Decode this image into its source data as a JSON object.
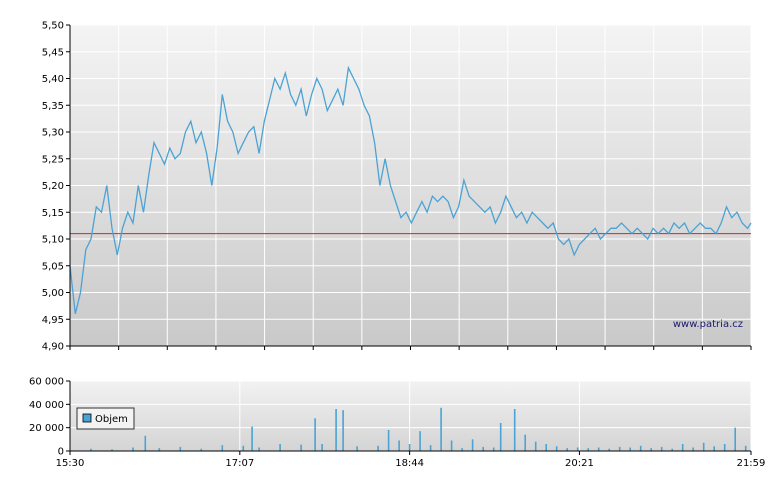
{
  "chart_data": [
    {
      "type": "line",
      "title": "",
      "xlabel": "",
      "ylabel": "",
      "y_ticks": [
        "4,90",
        "4,95",
        "5,00",
        "5,05",
        "5,10",
        "5,15",
        "5,20",
        "5,25",
        "5,30",
        "5,35",
        "5,40",
        "5,45",
        "5,50"
      ],
      "ylim": [
        4.9,
        5.5
      ],
      "x_ticks": [
        "15:30",
        "17:07",
        "18:44",
        "20:21",
        "21:59"
      ],
      "xlim": [
        "15:30",
        "21:59"
      ],
      "reference_line": {
        "value": 5.11,
        "color": "#dd2222"
      },
      "grid": true,
      "watermark": "www.patria.cz",
      "series": [
        {
          "color": "#4aa3d4",
          "points": [
            [
              "15:30",
              5.05
            ],
            [
              "15:33",
              4.96
            ],
            [
              "15:36",
              5.0
            ],
            [
              "15:39",
              5.08
            ],
            [
              "15:42",
              5.1
            ],
            [
              "15:45",
              5.16
            ],
            [
              "15:48",
              5.15
            ],
            [
              "15:51",
              5.2
            ],
            [
              "15:54",
              5.12
            ],
            [
              "15:57",
              5.07
            ],
            [
              "16:00",
              5.12
            ],
            [
              "16:03",
              5.15
            ],
            [
              "16:06",
              5.13
            ],
            [
              "16:09",
              5.2
            ],
            [
              "16:12",
              5.15
            ],
            [
              "16:15",
              5.22
            ],
            [
              "16:18",
              5.28
            ],
            [
              "16:21",
              5.26
            ],
            [
              "16:24",
              5.24
            ],
            [
              "16:27",
              5.27
            ],
            [
              "16:30",
              5.25
            ],
            [
              "16:33",
              5.26
            ],
            [
              "16:36",
              5.3
            ],
            [
              "16:39",
              5.32
            ],
            [
              "16:42",
              5.28
            ],
            [
              "16:45",
              5.3
            ],
            [
              "16:48",
              5.26
            ],
            [
              "16:51",
              5.2
            ],
            [
              "16:54",
              5.27
            ],
            [
              "16:57",
              5.37
            ],
            [
              "17:00",
              5.32
            ],
            [
              "17:03",
              5.3
            ],
            [
              "17:06",
              5.26
            ],
            [
              "17:09",
              5.28
            ],
            [
              "17:12",
              5.3
            ],
            [
              "17:15",
              5.31
            ],
            [
              "17:18",
              5.26
            ],
            [
              "17:21",
              5.32
            ],
            [
              "17:24",
              5.36
            ],
            [
              "17:27",
              5.4
            ],
            [
              "17:30",
              5.38
            ],
            [
              "17:33",
              5.41
            ],
            [
              "17:36",
              5.37
            ],
            [
              "17:39",
              5.35
            ],
            [
              "17:42",
              5.38
            ],
            [
              "17:45",
              5.33
            ],
            [
              "17:48",
              5.37
            ],
            [
              "17:51",
              5.4
            ],
            [
              "17:54",
              5.38
            ],
            [
              "17:57",
              5.34
            ],
            [
              "18:00",
              5.36
            ],
            [
              "18:03",
              5.38
            ],
            [
              "18:06",
              5.35
            ],
            [
              "18:09",
              5.42
            ],
            [
              "18:12",
              5.4
            ],
            [
              "18:15",
              5.38
            ],
            [
              "18:18",
              5.35
            ],
            [
              "18:21",
              5.33
            ],
            [
              "18:24",
              5.28
            ],
            [
              "18:27",
              5.2
            ],
            [
              "18:30",
              5.25
            ],
            [
              "18:33",
              5.2
            ],
            [
              "18:36",
              5.17
            ],
            [
              "18:39",
              5.14
            ],
            [
              "18:42",
              5.15
            ],
            [
              "18:45",
              5.13
            ],
            [
              "18:48",
              5.15
            ],
            [
              "18:51",
              5.17
            ],
            [
              "18:54",
              5.15
            ],
            [
              "18:57",
              5.18
            ],
            [
              "19:00",
              5.17
            ],
            [
              "19:03",
              5.18
            ],
            [
              "19:06",
              5.17
            ],
            [
              "19:09",
              5.14
            ],
            [
              "19:12",
              5.16
            ],
            [
              "19:15",
              5.21
            ],
            [
              "19:18",
              5.18
            ],
            [
              "19:21",
              5.17
            ],
            [
              "19:24",
              5.16
            ],
            [
              "19:27",
              5.15
            ],
            [
              "19:30",
              5.16
            ],
            [
              "19:33",
              5.13
            ],
            [
              "19:36",
              5.15
            ],
            [
              "19:39",
              5.18
            ],
            [
              "19:42",
              5.16
            ],
            [
              "19:45",
              5.14
            ],
            [
              "19:48",
              5.15
            ],
            [
              "19:51",
              5.13
            ],
            [
              "19:54",
              5.15
            ],
            [
              "19:57",
              5.14
            ],
            [
              "20:00",
              5.13
            ],
            [
              "20:03",
              5.12
            ],
            [
              "20:06",
              5.13
            ],
            [
              "20:09",
              5.1
            ],
            [
              "20:12",
              5.09
            ],
            [
              "20:15",
              5.1
            ],
            [
              "20:18",
              5.07
            ],
            [
              "20:21",
              5.09
            ],
            [
              "20:24",
              5.1
            ],
            [
              "20:27",
              5.11
            ],
            [
              "20:30",
              5.12
            ],
            [
              "20:33",
              5.1
            ],
            [
              "20:36",
              5.11
            ],
            [
              "20:39",
              5.12
            ],
            [
              "20:42",
              5.12
            ],
            [
              "20:45",
              5.13
            ],
            [
              "20:48",
              5.12
            ],
            [
              "20:51",
              5.11
            ],
            [
              "20:54",
              5.12
            ],
            [
              "20:57",
              5.11
            ],
            [
              "21:00",
              5.1
            ],
            [
              "21:03",
              5.12
            ],
            [
              "21:06",
              5.11
            ],
            [
              "21:09",
              5.12
            ],
            [
              "21:12",
              5.11
            ],
            [
              "21:15",
              5.13
            ],
            [
              "21:18",
              5.12
            ],
            [
              "21:21",
              5.13
            ],
            [
              "21:24",
              5.11
            ],
            [
              "21:27",
              5.12
            ],
            [
              "21:30",
              5.13
            ],
            [
              "21:33",
              5.12
            ],
            [
              "21:36",
              5.12
            ],
            [
              "21:39",
              5.11
            ],
            [
              "21:42",
              5.13
            ],
            [
              "21:45",
              5.16
            ],
            [
              "21:48",
              5.14
            ],
            [
              "21:51",
              5.15
            ],
            [
              "21:54",
              5.13
            ],
            [
              "21:57",
              5.12
            ],
            [
              "21:59",
              5.13
            ]
          ]
        }
      ]
    },
    {
      "type": "bar",
      "title": "",
      "xlabel": "",
      "ylabel": "",
      "y_ticks": [
        "0",
        "20 000",
        "40 000",
        "60 000"
      ],
      "ylim": [
        0,
        60000
      ],
      "x_ticks": [
        "15:30",
        "17:07",
        "18:44",
        "20:21",
        "21:59"
      ],
      "xlim": [
        "15:30",
        "21:59"
      ],
      "grid": true,
      "legend": {
        "placement": "top-left",
        "entries": [
          "Objem"
        ]
      },
      "series": [
        {
          "name": "Objem",
          "color": "#4aa3d4",
          "points": [
            [
              "15:42",
              2000
            ],
            [
              "15:54",
              1500
            ],
            [
              "16:06",
              3000
            ],
            [
              "16:13",
              13000
            ],
            [
              "16:21",
              2500
            ],
            [
              "16:33",
              3500
            ],
            [
              "16:45",
              2000
            ],
            [
              "16:57",
              5000
            ],
            [
              "17:09",
              4500
            ],
            [
              "17:14",
              21000
            ],
            [
              "17:18",
              3000
            ],
            [
              "17:30",
              6000
            ],
            [
              "17:42",
              5500
            ],
            [
              "17:50",
              28000
            ],
            [
              "17:54",
              6000
            ],
            [
              "18:02",
              36000
            ],
            [
              "18:06",
              35000
            ],
            [
              "18:14",
              4000
            ],
            [
              "18:26",
              4500
            ],
            [
              "18:32",
              18000
            ],
            [
              "18:38",
              9000
            ],
            [
              "18:44",
              6000
            ],
            [
              "18:50",
              17000
            ],
            [
              "18:56",
              5000
            ],
            [
              "19:02",
              37000
            ],
            [
              "19:08",
              9000
            ],
            [
              "19:14",
              2500
            ],
            [
              "19:20",
              10000
            ],
            [
              "19:26",
              3500
            ],
            [
              "19:32",
              3000
            ],
            [
              "19:36",
              24000
            ],
            [
              "19:44",
              36000
            ],
            [
              "19:50",
              14000
            ],
            [
              "19:56",
              8000
            ],
            [
              "20:02",
              6000
            ],
            [
              "20:08",
              4000
            ],
            [
              "20:14",
              2500
            ],
            [
              "20:20",
              3000
            ],
            [
              "20:26",
              2500
            ],
            [
              "20:32",
              3000
            ],
            [
              "20:38",
              2000
            ],
            [
              "20:44",
              3500
            ],
            [
              "20:50",
              3000
            ],
            [
              "20:56",
              4500
            ],
            [
              "21:02",
              2500
            ],
            [
              "21:08",
              3500
            ],
            [
              "21:14",
              2000
            ],
            [
              "21:20",
              6000
            ],
            [
              "21:26",
              3000
            ],
            [
              "21:32",
              7000
            ],
            [
              "21:38",
              4000
            ],
            [
              "21:44",
              6000
            ],
            [
              "21:50",
              20000
            ],
            [
              "21:56",
              4500
            ]
          ]
        }
      ]
    }
  ]
}
